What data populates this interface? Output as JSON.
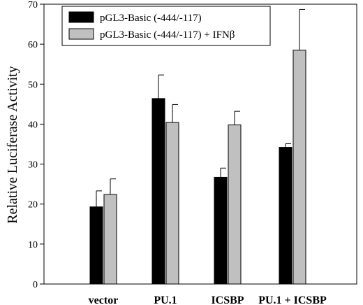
{
  "chart_data": {
    "type": "bar",
    "categories": [
      "vector",
      "PU.1",
      "ICSBP",
      "PU.1 + ICSBP"
    ],
    "series": [
      {
        "name": "pGL3-Basic (-444/-117)",
        "values": [
          19.3,
          46.4,
          26.7,
          34.2
        ],
        "errors": [
          4.0,
          5.9,
          2.3,
          0.9
        ],
        "color": "#000000"
      },
      {
        "name": "pGL3-Basic (-444/-117) + IFNβ",
        "values": [
          22.4,
          40.4,
          39.8,
          58.5
        ],
        "errors": [
          3.9,
          4.5,
          3.4,
          10.2
        ],
        "color": "#c0c0c0"
      }
    ],
    "ylabel": "Relative Luciferase Activity",
    "xlabel": "",
    "ylim": [
      0,
      70
    ],
    "yticks": [
      0,
      10,
      20,
      30,
      40,
      50,
      60,
      70
    ],
    "grid": false,
    "legend_position": "top-left"
  }
}
